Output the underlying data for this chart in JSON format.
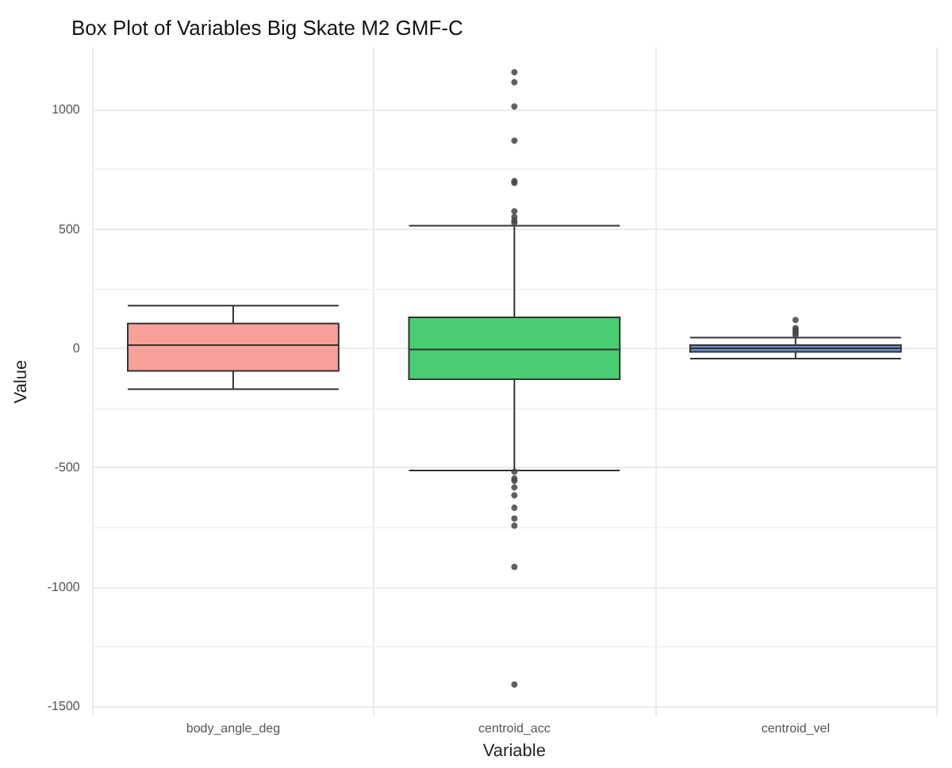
{
  "chart_data": {
    "type": "box",
    "title": "Box Plot of Variables Big Skate M2 GMF-C",
    "xlabel": "Variable",
    "ylabel": "Value",
    "categories": [
      "body_angle_deg",
      "centroid_acc",
      "centroid_vel"
    ],
    "colors": [
      "#f8a09a",
      "#4bcc72",
      "#6a8bcc"
    ],
    "boxes": [
      {
        "low": -171,
        "q1": -95,
        "median": 13,
        "q3": 104,
        "high": 179
      },
      {
        "low": -512,
        "q1": -130,
        "median": -5,
        "q3": 130,
        "high": 514,
        "outliers": [
          1157,
          1115,
          1013,
          870,
          701,
          693,
          574,
          551,
          535,
          525,
          -517,
          -545,
          -555,
          -583,
          -616,
          -668,
          -713,
          -743,
          -916,
          -1409
        ]
      },
      {
        "low": -43,
        "q1": -15,
        "median": 0,
        "q3": 13,
        "high": 45,
        "outliers": [
          119,
          85,
          75,
          65,
          55
        ]
      }
    ],
    "ylim": [
      -1540,
      1260
    ],
    "yticks": [
      -1500,
      -1000,
      -500,
      0,
      500,
      1000
    ],
    "grid": true
  }
}
